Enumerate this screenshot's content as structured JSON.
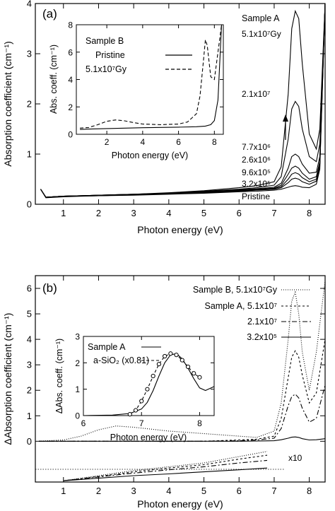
{
  "chart_data": [
    {
      "panel": "(a)",
      "type": "line",
      "xlabel": "Photon energy (eV)",
      "ylabel": "Absorption coefficient (cm⁻¹)",
      "xlim": [
        0.2,
        8.45
      ],
      "ylim": [
        0,
        4
      ],
      "xticks": [
        "1",
        "2",
        "3",
        "4",
        "5",
        "6",
        "7",
        "8"
      ],
      "yticks": [
        "0",
        "1",
        "2",
        "3",
        "4"
      ],
      "legend_title": "Sample A",
      "series": [
        {
          "name": "5.1x10⁷Gy",
          "x": [
            0.35,
            0.5,
            1,
            2,
            3,
            4,
            5,
            6,
            6.5,
            7,
            7.2,
            7.4,
            7.5,
            7.6,
            7.7,
            7.8,
            8.0,
            8.2,
            8.3,
            8.45
          ],
          "y": [
            0.3,
            0.14,
            0.16,
            0.18,
            0.2,
            0.23,
            0.27,
            0.33,
            0.37,
            0.45,
            0.75,
            2.2,
            3.5,
            3.85,
            3.7,
            2.8,
            1.4,
            1.1,
            1.5,
            4.0
          ]
        },
        {
          "name": "2.1x10⁷",
          "x": [
            0.35,
            0.5,
            1,
            2,
            3,
            4,
            5,
            6,
            6.5,
            7,
            7.2,
            7.4,
            7.5,
            7.6,
            7.7,
            7.8,
            8.0,
            8.2,
            8.3,
            8.45
          ],
          "y": [
            0.3,
            0.14,
            0.16,
            0.18,
            0.2,
            0.22,
            0.26,
            0.3,
            0.33,
            0.38,
            0.55,
            1.3,
            1.9,
            2.05,
            1.95,
            1.5,
            0.95,
            0.85,
            1.2,
            4.0
          ]
        },
        {
          "name": "7.7x10⁶",
          "x": [
            0.35,
            0.5,
            1,
            2,
            3,
            4,
            5,
            6,
            6.5,
            7,
            7.2,
            7.4,
            7.5,
            7.6,
            7.7,
            7.8,
            8.0,
            8.2,
            8.3,
            8.45
          ],
          "y": [
            0.3,
            0.14,
            0.16,
            0.18,
            0.2,
            0.22,
            0.25,
            0.29,
            0.31,
            0.34,
            0.42,
            0.72,
            0.95,
            1.0,
            0.95,
            0.8,
            0.62,
            0.64,
            0.95,
            4.0
          ]
        },
        {
          "name": "2.6x10⁶",
          "x": [
            0.35,
            0.5,
            1,
            2,
            3,
            4,
            5,
            6,
            6.5,
            7,
            7.2,
            7.4,
            7.5,
            7.6,
            7.7,
            7.8,
            8.0,
            8.2,
            8.3,
            8.45
          ],
          "y": [
            0.3,
            0.14,
            0.16,
            0.18,
            0.19,
            0.21,
            0.24,
            0.28,
            0.3,
            0.32,
            0.38,
            0.6,
            0.72,
            0.76,
            0.72,
            0.62,
            0.5,
            0.55,
            0.85,
            4.0
          ]
        },
        {
          "name": "9.6x10⁵",
          "x": [
            0.35,
            0.5,
            1,
            2,
            3,
            4,
            5,
            6,
            6.5,
            7,
            7.2,
            7.4,
            7.5,
            7.6,
            7.7,
            7.8,
            8.0,
            8.2,
            8.3,
            8.45
          ],
          "y": [
            0.3,
            0.14,
            0.16,
            0.17,
            0.19,
            0.21,
            0.24,
            0.27,
            0.29,
            0.31,
            0.35,
            0.5,
            0.6,
            0.63,
            0.6,
            0.53,
            0.45,
            0.5,
            0.8,
            4.0
          ]
        },
        {
          "name": "3.2x10⁵",
          "x": [
            0.35,
            0.5,
            1,
            2,
            3,
            4,
            5,
            6,
            6.5,
            7,
            7.2,
            7.4,
            7.5,
            7.6,
            7.7,
            7.8,
            8.0,
            8.2,
            8.3,
            8.45
          ],
          "y": [
            0.3,
            0.14,
            0.16,
            0.17,
            0.19,
            0.21,
            0.23,
            0.26,
            0.28,
            0.3,
            0.33,
            0.43,
            0.5,
            0.52,
            0.5,
            0.45,
            0.4,
            0.46,
            0.75,
            4.0
          ]
        },
        {
          "name": "Pristine",
          "x": [
            0.35,
            0.5,
            1,
            2,
            3,
            4,
            5,
            6,
            6.5,
            7,
            7.2,
            7.4,
            7.5,
            7.6,
            7.7,
            7.8,
            8.0,
            8.2,
            8.3,
            8.45
          ],
          "y": [
            0.3,
            0.13,
            0.15,
            0.17,
            0.18,
            0.2,
            0.22,
            0.25,
            0.26,
            0.28,
            0.3,
            0.34,
            0.36,
            0.37,
            0.36,
            0.34,
            0.33,
            0.4,
            0.7,
            4.0
          ]
        }
      ],
      "inset": {
        "xlabel": "Photon energy (eV)",
        "ylabel": "Abs. coeff. (cm⁻¹)",
        "xlim": [
          0.3,
          8.5
        ],
        "ylim": [
          0,
          8
        ],
        "xticks": [
          "2",
          "4",
          "6",
          "8"
        ],
        "yticks": [
          "0",
          "2",
          "4",
          "6",
          "8"
        ],
        "legend_title": "Sample B",
        "series": [
          {
            "name": "Pristine",
            "style": "solid",
            "x": [
              0.5,
              1,
              2,
              3,
              4,
              5,
              6,
              7,
              7.5,
              7.8,
              8.0,
              8.2,
              8.4
            ],
            "y": [
              0.35,
              0.38,
              0.42,
              0.45,
              0.48,
              0.5,
              0.52,
              0.55,
              0.6,
              0.7,
              1.0,
              2.5,
              8.0
            ]
          },
          {
            "name": "5.1x10⁷Gy",
            "style": "dashed",
            "x": [
              0.5,
              1,
              1.5,
              2,
              2.5,
              3,
              3.5,
              4,
              5,
              6,
              6.5,
              7,
              7.2,
              7.4,
              7.5,
              7.6,
              7.8,
              8.0,
              8.2,
              8.4
            ],
            "y": [
              0.45,
              0.5,
              0.7,
              0.95,
              1.05,
              0.98,
              0.85,
              0.75,
              0.7,
              0.75,
              0.9,
              1.5,
              2.8,
              5.5,
              6.9,
              6.5,
              4.2,
              4.0,
              6.0,
              8.0
            ]
          }
        ]
      }
    },
    {
      "panel": "(b)",
      "type": "line",
      "xlabel": "Photon energy (eV)",
      "ylabel": "ΔAbsorption coefficient (cm⁻¹)",
      "xlim": [
        0.2,
        8.45
      ],
      "ylim": [
        -1.6,
        6.5
      ],
      "xticks": [
        "1",
        "2",
        "3",
        "4",
        "5",
        "6",
        "7",
        "8"
      ],
      "yticks": [
        "0",
        "1",
        "2",
        "3",
        "4",
        "5",
        "6"
      ],
      "annotation": "x10",
      "series": [
        {
          "name": "Sample B, 5.1x10⁷Gy",
          "style": "dotted",
          "x": [
            0.3,
            1,
            1.5,
            2,
            2.5,
            3,
            4,
            5,
            6,
            6.5,
            7,
            7.2,
            7.4,
            7.5,
            7.6,
            7.7,
            7.8,
            8.0,
            8.2,
            8.45
          ],
          "y": [
            0,
            0.05,
            0.2,
            0.45,
            0.6,
            0.55,
            0.4,
            0.3,
            0.2,
            0.15,
            0.4,
            1.5,
            4.0,
            5.5,
            5.85,
            5.0,
            3.5,
            2.0,
            3.5,
            6.3
          ]
        },
        {
          "name": "Sample A, 5.1x10⁷",
          "style": "short-dash",
          "x": [
            0.3,
            1,
            2,
            3,
            4,
            5,
            6,
            6.5,
            7,
            7.2,
            7.4,
            7.5,
            7.6,
            7.7,
            7.8,
            8.0,
            8.2,
            8.45
          ],
          "y": [
            0,
            0,
            0,
            0,
            0,
            0,
            0.05,
            0.08,
            0.2,
            0.9,
            2.5,
            3.3,
            3.55,
            3.3,
            2.6,
            1.5,
            1.9,
            4.0
          ]
        },
        {
          "name": "2.1x10⁷",
          "style": "long-dash",
          "x": [
            0.3,
            1,
            2,
            3,
            4,
            5,
            6,
            6.5,
            7,
            7.2,
            7.4,
            7.5,
            7.6,
            7.7,
            7.8,
            8.0,
            8.2,
            8.45
          ],
          "y": [
            0,
            0,
            0,
            0,
            0,
            0,
            0.02,
            0.05,
            0.12,
            0.5,
            1.4,
            1.75,
            1.85,
            1.7,
            1.3,
            0.75,
            0.9,
            2.2
          ]
        },
        {
          "name": "3.2x10⁵",
          "style": "solid",
          "x": [
            0.3,
            1,
            2,
            3,
            4,
            5,
            6,
            7,
            7.2,
            7.4,
            7.5,
            7.6,
            7.7,
            7.8,
            8.0,
            8.2,
            8.45
          ],
          "y": [
            0,
            0,
            0,
            0,
            0,
            0,
            0,
            0.02,
            0.06,
            0.12,
            0.16,
            0.17,
            0.15,
            0.1,
            0.05,
            0.06,
            0.1
          ]
        },
        {
          "name": "Sample B, 5.1x10⁷Gy (x10)",
          "style": "dotted",
          "x": [
            1,
            2,
            3,
            4,
            5,
            6,
            6.8
          ],
          "y": [
            -1.55,
            -1.35,
            -1.15,
            -1.0,
            -0.85,
            -0.6,
            -0.4
          ]
        },
        {
          "name": "Sample A, 5.1x10⁷ (x10)",
          "style": "short-dash",
          "x": [
            1,
            2,
            3,
            4,
            5,
            6,
            6.8
          ],
          "y": [
            -1.55,
            -1.38,
            -1.2,
            -1.05,
            -0.92,
            -0.7,
            -0.55
          ]
        },
        {
          "name": "2.1x10⁷ (x10)",
          "style": "long-dash",
          "x": [
            1,
            2,
            3,
            4,
            5,
            6,
            6.8
          ],
          "y": [
            -1.55,
            -1.4,
            -1.25,
            -1.12,
            -1.0,
            -0.85,
            -0.75
          ]
        },
        {
          "name": "3.2x10⁵ (x10)",
          "style": "solid",
          "x": [
            1,
            2,
            3,
            4,
            5,
            6,
            6.8
          ],
          "y": [
            -1.55,
            -1.45,
            -1.35,
            -1.28,
            -1.2,
            -1.12,
            -1.05
          ]
        }
      ],
      "inset": {
        "xlabel": "Photon energy (eV)",
        "ylabel": "ΔAbs. coeff. (cm⁻¹)",
        "xlim": [
          6,
          8.25
        ],
        "ylim": [
          0,
          3
        ],
        "xticks": [
          "6",
          "7",
          "8"
        ],
        "yticks": [
          "0",
          "1",
          "2",
          "3"
        ],
        "series": [
          {
            "name": "Sample A",
            "style": "solid",
            "x": [
              6,
              6.5,
              6.8,
              7.0,
              7.1,
              7.2,
              7.3,
              7.4,
              7.5,
              7.6,
              7.7,
              7.8,
              7.9,
              8.0,
              8.1,
              8.2,
              8.25
            ],
            "y": [
              0,
              0.02,
              0.08,
              0.25,
              0.5,
              0.95,
              1.5,
              2.0,
              2.3,
              2.35,
              2.15,
              1.8,
              1.4,
              1.05,
              0.95,
              1.05,
              1.1
            ]
          },
          {
            "name": "a-SiO₂ (x0.81)",
            "style": "dashed-markers",
            "x": [
              6.8,
              6.9,
              7.0,
              7.1,
              7.2,
              7.3,
              7.4,
              7.5,
              7.6,
              7.7,
              7.8,
              7.9,
              8.0
            ],
            "y": [
              0.05,
              0.2,
              0.55,
              1.0,
              1.5,
              1.95,
              2.25,
              2.35,
              2.3,
              2.1,
              1.85,
              1.6,
              1.45
            ]
          }
        ]
      }
    }
  ]
}
